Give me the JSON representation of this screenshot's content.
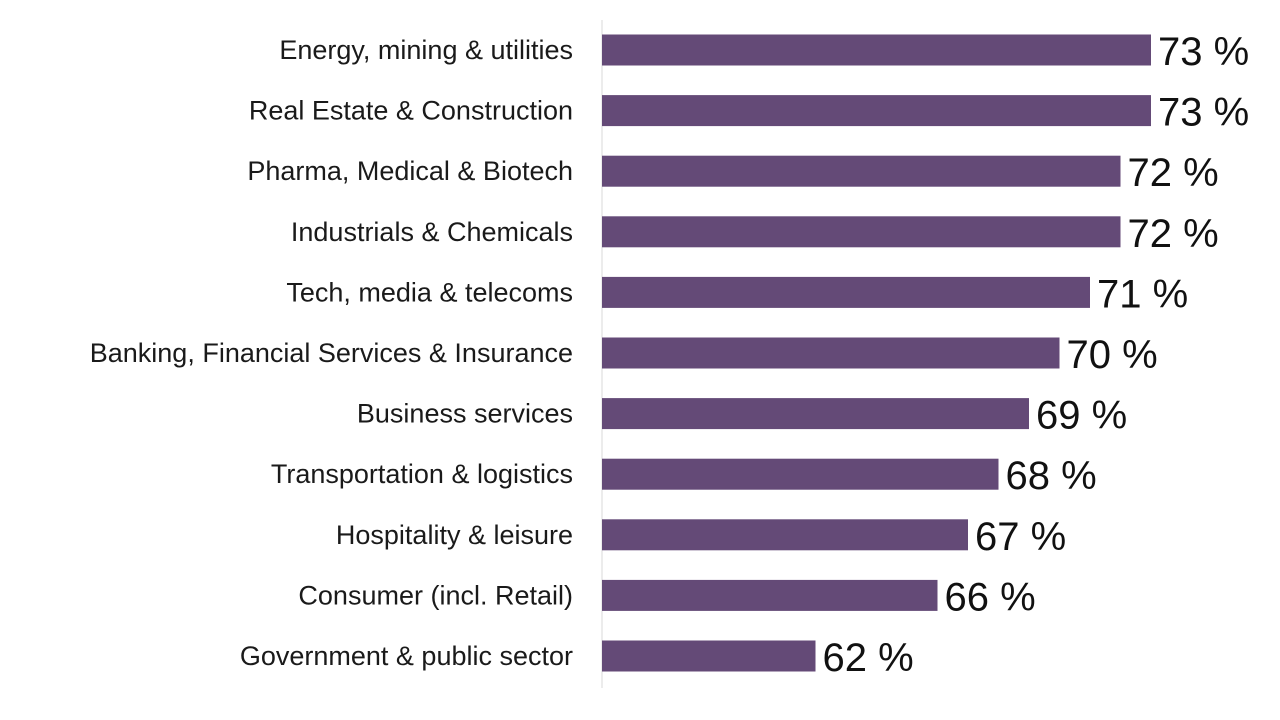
{
  "chart_data": {
    "type": "bar",
    "orientation": "horizontal",
    "categories": [
      "Energy, mining & utilities",
      "Real Estate & Construction",
      "Pharma, Medical & Biotech",
      "Industrials & Chemicals",
      "Tech, media & telecoms",
      "Banking, Financial Services & Insurance",
      "Business services",
      "Transportation & logistics",
      "Hospitality & leisure",
      "Consumer (incl. Retail)",
      "Government & public sector"
    ],
    "values": [
      73,
      73,
      72,
      72,
      71,
      70,
      69,
      68,
      67,
      66,
      62
    ],
    "value_labels": [
      "73 %",
      "73 %",
      "72 %",
      "72 %",
      "71 %",
      "70 %",
      "69 %",
      "68 %",
      "67 %",
      "66 %",
      "62 %"
    ],
    "xlim": [
      55,
      73
    ],
    "grid": false,
    "legend": "none",
    "bar_color": "#644a77"
  }
}
